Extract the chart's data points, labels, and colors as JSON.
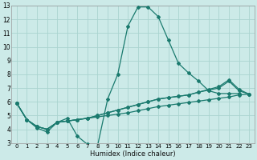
{
  "xlabel": "Humidex (Indice chaleur)",
  "bg_color": "#cceae8",
  "grid_color": "#aad4d0",
  "line_color": "#1a7a6e",
  "xlim": [
    -0.5,
    23.5
  ],
  "ylim": [
    3,
    13
  ],
  "xticks": [
    0,
    1,
    2,
    3,
    4,
    5,
    6,
    7,
    8,
    9,
    10,
    11,
    12,
    13,
    14,
    15,
    16,
    17,
    18,
    19,
    20,
    21,
    22,
    23
  ],
  "yticks": [
    3,
    4,
    5,
    6,
    7,
    8,
    9,
    10,
    11,
    12,
    13
  ],
  "series": [
    {
      "x": [
        0,
        1,
        2,
        3,
        4,
        5,
        6,
        7,
        8,
        9,
        10,
        11,
        12,
        13,
        14,
        15,
        16,
        17,
        18,
        19,
        20,
        21,
        22
      ],
      "y": [
        5.9,
        4.7,
        4.1,
        3.8,
        4.5,
        4.8,
        3.5,
        2.9,
        2.8,
        6.2,
        8.0,
        11.5,
        12.9,
        12.9,
        12.2,
        10.5,
        8.8,
        8.1,
        7.5,
        6.8,
        6.6,
        6.6,
        6.6
      ]
    },
    {
      "x": [
        0,
        1,
        2,
        3,
        4,
        5,
        6,
        7,
        8,
        9,
        10,
        11,
        12,
        13,
        14,
        15,
        16,
        17,
        18,
        19,
        20,
        21,
        22,
        23
      ],
      "y": [
        5.9,
        4.7,
        4.2,
        4.0,
        4.5,
        4.6,
        4.7,
        4.8,
        4.9,
        5.0,
        5.1,
        5.2,
        5.35,
        5.5,
        5.65,
        5.75,
        5.85,
        5.95,
        6.05,
        6.15,
        6.25,
        6.35,
        6.5,
        6.55
      ]
    },
    {
      "x": [
        0,
        1,
        2,
        3,
        4,
        5,
        6,
        7,
        8,
        9,
        10,
        11,
        12,
        13,
        14,
        15,
        16,
        17,
        18,
        19,
        20,
        21,
        22,
        23
      ],
      "y": [
        5.9,
        4.7,
        4.2,
        4.0,
        4.5,
        4.6,
        4.7,
        4.8,
        5.0,
        5.2,
        5.4,
        5.6,
        5.8,
        6.0,
        6.2,
        6.3,
        6.4,
        6.5,
        6.7,
        6.85,
        7.0,
        7.5,
        6.8,
        6.55
      ]
    },
    {
      "x": [
        0,
        1,
        2,
        3,
        4,
        5,
        6,
        7,
        8,
        9,
        10,
        11,
        12,
        13,
        14,
        15,
        16,
        17,
        18,
        19,
        20,
        21,
        22,
        23
      ],
      "y": [
        5.9,
        4.7,
        4.2,
        4.0,
        4.5,
        4.6,
        4.7,
        4.8,
        5.0,
        5.2,
        5.4,
        5.6,
        5.8,
        6.0,
        6.2,
        6.3,
        6.4,
        6.5,
        6.7,
        6.9,
        7.1,
        7.6,
        6.9,
        6.55
      ]
    }
  ],
  "marker": "D",
  "markersize": 2.0,
  "linewidth": 0.9,
  "tick_fontsize_x": 5.0,
  "tick_fontsize_y": 5.5,
  "xlabel_fontsize": 6.0
}
